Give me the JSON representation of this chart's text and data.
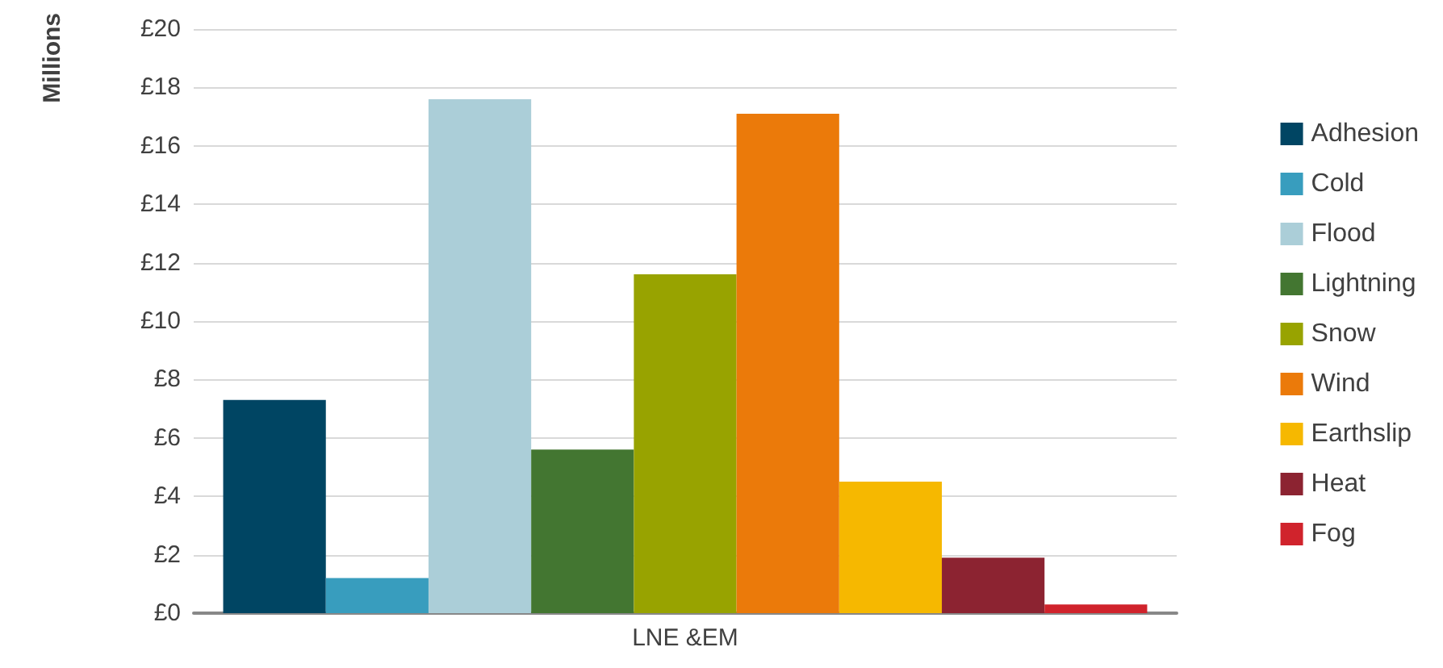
{
  "chart_data": {
    "type": "bar",
    "ylabel": "Millions",
    "categories": [
      "LNE &EM"
    ],
    "series": [
      {
        "name": "Adhesion",
        "color": "#004563",
        "values": [
          7.3
        ]
      },
      {
        "name": "Cold",
        "color": "#389dbe",
        "values": [
          1.2
        ]
      },
      {
        "name": "Flood",
        "color": "#abced8",
        "values": [
          17.6
        ]
      },
      {
        "name": "Lightning",
        "color": "#437631",
        "values": [
          5.6
        ]
      },
      {
        "name": "Snow",
        "color": "#98a300",
        "values": [
          11.6
        ]
      },
      {
        "name": "Wind",
        "color": "#eb7a0a",
        "values": [
          17.1
        ]
      },
      {
        "name": "Earthslip",
        "color": "#f6b800",
        "values": [
          4.5
        ]
      },
      {
        "name": "Heat",
        "color": "#8c2331",
        "values": [
          1.9
        ]
      },
      {
        "name": "Fog",
        "color": "#d0232c",
        "values": [
          0.3
        ]
      }
    ],
    "ylim": [
      0,
      20
    ],
    "yticks": [
      {
        "value": 0,
        "label": "£0"
      },
      {
        "value": 2,
        "label": "£2"
      },
      {
        "value": 4,
        "label": "£4"
      },
      {
        "value": 6,
        "label": "£6"
      },
      {
        "value": 8,
        "label": "£8"
      },
      {
        "value": 10,
        "label": "£10"
      },
      {
        "value": 12,
        "label": "£12"
      },
      {
        "value": 14,
        "label": "£14"
      },
      {
        "value": 16,
        "label": "£16"
      },
      {
        "value": 18,
        "label": "£18"
      },
      {
        "value": 20,
        "label": "£20"
      }
    ],
    "grid": "y",
    "legend": "right"
  }
}
